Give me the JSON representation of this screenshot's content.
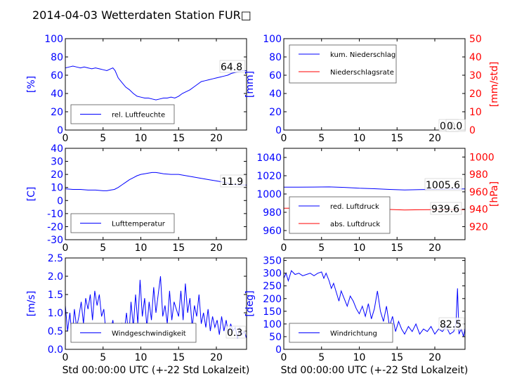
{
  "title": "2014-04-03 Wetterdaten Station FUR□",
  "colors": {
    "blue": "#0000ff",
    "red": "#ff0000",
    "axis": "#000000"
  },
  "chart_data": [
    {
      "type": "line",
      "name": "humidity",
      "ylabel": "[%]",
      "xlim": [
        0,
        24
      ],
      "ylim": [
        0,
        100
      ],
      "yticks": [
        0,
        20,
        40,
        60,
        80,
        100
      ],
      "xticks": [
        0,
        5,
        10,
        15,
        20
      ],
      "legend": {
        "position": "lower-left",
        "entries": [
          {
            "label": "rel. Luftfeuchte",
            "color": "#0000ff"
          }
        ]
      },
      "annotations": [
        {
          "text": "64.8"
        }
      ],
      "series": [
        {
          "name": "rel. Luftfeuchte",
          "color": "#0000ff",
          "axis": "left",
          "x": [
            0,
            0.5,
            1,
            1.5,
            2,
            2.5,
            3,
            3.5,
            4,
            4.5,
            5,
            5.5,
            6,
            6.3,
            6.6,
            7,
            7.5,
            8,
            8.5,
            9,
            9.5,
            10,
            10.5,
            11,
            11.5,
            12,
            12.5,
            13,
            13.5,
            14,
            14.5,
            15,
            15.5,
            16,
            16.5,
            17,
            17.5,
            18,
            18.5,
            19,
            19.5,
            20,
            20.5,
            21,
            21.5,
            22,
            22.5,
            23,
            23.5,
            24
          ],
          "y": [
            68,
            69,
            70,
            69,
            68,
            69,
            68,
            67,
            68,
            67,
            66,
            65,
            67,
            68,
            65,
            57,
            52,
            47,
            44,
            40,
            37,
            36,
            35,
            35,
            34,
            33,
            34,
            35,
            35,
            36,
            35,
            37,
            40,
            42,
            44,
            47,
            50,
            53,
            54,
            55,
            56,
            57,
            58,
            59,
            60,
            62,
            63,
            64,
            65,
            65
          ]
        }
      ]
    },
    {
      "type": "line",
      "name": "precipitation",
      "ylabel": "[mm]",
      "y2label": "[mm/std]",
      "xlim": [
        0,
        24
      ],
      "ylim": [
        0,
        100
      ],
      "y2lim": [
        0,
        50
      ],
      "yticks": [
        0,
        20,
        40,
        60,
        80,
        100
      ],
      "y2ticks": [
        0,
        10,
        20,
        30,
        40,
        50
      ],
      "xticks": [
        0,
        5,
        10,
        15,
        20
      ],
      "legend": {
        "position": "upper-left",
        "entries": [
          {
            "label": "kum. Niederschlag",
            "color": "#0000ff"
          },
          {
            "label": "Niederschlagsrate",
            "color": "#ff0000"
          }
        ]
      },
      "annotations": [
        {
          "text": "0.0"
        },
        {
          "text": "0.0"
        }
      ],
      "series": [
        {
          "name": "kum. Niederschlag",
          "color": "#0000ff",
          "axis": "left",
          "x": [
            0,
            24
          ],
          "y": [
            0,
            0
          ]
        },
        {
          "name": "Niederschlagsrate",
          "color": "#ff0000",
          "axis": "right",
          "x": [
            0,
            24
          ],
          "y": [
            0,
            0
          ]
        }
      ]
    },
    {
      "type": "line",
      "name": "temperature",
      "ylabel": "[C]",
      "xlim": [
        0,
        24
      ],
      "ylim": [
        -30,
        40
      ],
      "yticks": [
        -30,
        -20,
        -10,
        0,
        10,
        20,
        30,
        40
      ],
      "xticks": [
        0,
        5,
        10,
        15,
        20
      ],
      "legend": {
        "position": "lower-left",
        "entries": [
          {
            "label": "Lufttemperatur",
            "color": "#0000ff"
          }
        ]
      },
      "annotations": [
        {
          "text": "11.9"
        }
      ],
      "series": [
        {
          "name": "Lufttemperatur",
          "color": "#0000ff",
          "axis": "left",
          "x": [
            0,
            1,
            2,
            3,
            4,
            5,
            5.5,
            6,
            6.5,
            7,
            7.5,
            8,
            8.5,
            9,
            9.5,
            10,
            10.5,
            11,
            11.5,
            12,
            12.5,
            13,
            14,
            15,
            16,
            17,
            18,
            19,
            20,
            21,
            22,
            23,
            24
          ],
          "y": [
            9,
            8.5,
            8.5,
            8,
            8,
            7.5,
            7.5,
            8,
            8.5,
            10,
            12,
            14,
            16,
            17.5,
            19,
            20,
            20.5,
            21,
            21.5,
            21.5,
            21,
            20.5,
            20,
            20,
            19,
            18,
            17,
            16,
            15,
            14,
            12.5,
            12,
            11.9
          ]
        }
      ]
    },
    {
      "type": "line",
      "name": "pressure",
      "y2label": "[hPa]",
      "xlim": [
        0,
        24
      ],
      "ylim": [
        950,
        1050
      ],
      "y2lim": [
        905,
        1010
      ],
      "yticks": [
        960,
        980,
        1000,
        1020,
        1040
      ],
      "y2ticks": [
        920,
        940,
        960,
        980,
        1000
      ],
      "xticks": [
        0,
        5,
        10,
        15,
        20
      ],
      "legend": {
        "position": "lower-left",
        "entries": [
          {
            "label": "red. Luftdruck",
            "color": "#0000ff"
          },
          {
            "label": "abs. Luftdruck",
            "color": "#ff0000"
          }
        ]
      },
      "annotations": [
        {
          "text": "1005.6"
        },
        {
          "text": "939.6"
        }
      ],
      "series": [
        {
          "name": "red. Luftdruck",
          "color": "#0000ff",
          "axis": "left",
          "x": [
            0,
            2,
            4,
            6,
            8,
            10,
            12,
            14,
            16,
            18,
            20,
            22,
            24
          ],
          "y": [
            1007.5,
            1007.5,
            1007.6,
            1007.8,
            1007.2,
            1006.3,
            1005.8,
            1005.0,
            1004.4,
            1004.8,
            1005.0,
            1005.4,
            1005.6
          ]
        },
        {
          "name": "abs. Luftdruck",
          "color": "#ff0000",
          "axis": "right",
          "x": [
            0,
            2,
            4,
            6,
            8,
            10,
            12,
            14,
            16,
            18,
            20,
            22,
            24
          ],
          "y": [
            941.2,
            941.3,
            941.4,
            941.5,
            941.2,
            940.7,
            940.3,
            939.7,
            939.2,
            939.4,
            939.5,
            939.6,
            939.6
          ]
        }
      ]
    },
    {
      "type": "line",
      "name": "windspeed",
      "ylabel": "[m/s]",
      "xlabel": "Std 00:00:00 UTC (+-22 Std Lokalzeit)",
      "xlim": [
        0,
        24
      ],
      "ylim": [
        0,
        2.5
      ],
      "yticks": [
        0.0,
        0.5,
        1.0,
        1.5,
        2.0,
        2.5
      ],
      "xticks": [
        0,
        5,
        10,
        15,
        20
      ],
      "legend": {
        "position": "lower-center",
        "entries": [
          {
            "label": "Windgeschwindigkeit",
            "color": "#0000ff"
          }
        ]
      },
      "annotations": [
        {
          "text": "0.3"
        }
      ],
      "series": [
        {
          "name": "Windgeschwindigkeit",
          "color": "#0000ff",
          "axis": "left",
          "x": [
            0,
            0.3,
            0.6,
            0.9,
            1.2,
            1.5,
            1.8,
            2.1,
            2.4,
            2.7,
            3,
            3.3,
            3.6,
            3.9,
            4.2,
            4.5,
            4.8,
            5.1,
            5.4,
            5.7,
            6,
            6.3,
            6.6,
            6.9,
            7.2,
            7.5,
            7.8,
            8.1,
            8.4,
            8.7,
            9,
            9.3,
            9.6,
            9.9,
            10.2,
            10.5,
            10.8,
            11.1,
            11.4,
            11.7,
            12,
            12.3,
            12.6,
            12.9,
            13.2,
            13.5,
            13.8,
            14.1,
            14.4,
            14.7,
            15,
            15.3,
            15.6,
            15.9,
            16.2,
            16.5,
            16.8,
            17.1,
            17.4,
            17.7,
            18,
            18.3,
            18.6,
            18.9,
            19.2,
            19.5,
            19.8,
            20.1,
            20.4,
            20.7,
            21,
            21.3,
            21.6,
            21.9,
            22.2,
            22.5,
            22.8,
            23.1,
            23.4,
            23.7,
            24
          ],
          "y": [
            1.2,
            0.5,
            1.0,
            0.3,
            1.1,
            0.6,
            0.9,
            1.3,
            0.7,
            1.4,
            1.1,
            1.5,
            0.8,
            1.6,
            1.2,
            1.5,
            0.9,
            1.1,
            0.4,
            0.7,
            0.5,
            0.8,
            0.3,
            0.6,
            0.4,
            0.7,
            0.5,
            1.0,
            0.3,
            1.3,
            0.6,
            1.5,
            0.7,
            1.9,
            0.9,
            1.4,
            0.6,
            1.3,
            0.8,
            1.7,
            1.0,
            1.5,
            2.0,
            0.9,
            1.2,
            0.7,
            1.6,
            0.8,
            1.3,
            1.1,
            0.9,
            1.6,
            0.8,
            1.8,
            1.0,
            1.4,
            0.6,
            1.2,
            0.9,
            1.5,
            0.7,
            1.0,
            0.6,
            1.1,
            0.5,
            0.9,
            0.6,
            0.8,
            0.4,
            0.9,
            0.5,
            0.8,
            0.4,
            0.7,
            0.5,
            0.6,
            0.3,
            0.6,
            0.4,
            0.5,
            0.3
          ]
        }
      ]
    },
    {
      "type": "line",
      "name": "winddirection",
      "ylabel": "[deg]",
      "xlabel": "Std 00:00:00 UTC (+-22 Std Lokalzeit)",
      "xlim": [
        0,
        24
      ],
      "ylim": [
        0,
        360
      ],
      "yticks": [
        0,
        50,
        100,
        150,
        200,
        250,
        300,
        350
      ],
      "xticks": [
        0,
        5,
        10,
        15,
        20
      ],
      "legend": {
        "position": "lower-left",
        "entries": [
          {
            "label": "Windrichtung",
            "color": "#0000ff"
          }
        ]
      },
      "annotations": [
        {
          "text": "82.5"
        }
      ],
      "series": [
        {
          "name": "Windrichtung",
          "color": "#0000ff",
          "axis": "left",
          "x": [
            0,
            0.3,
            0.6,
            1,
            1.5,
            2,
            2.5,
            3,
            3.5,
            4,
            4.5,
            5,
            5.3,
            5.6,
            6,
            6.3,
            6.6,
            7,
            7.3,
            7.6,
            8,
            8.4,
            8.8,
            9.2,
            9.6,
            10,
            10.4,
            10.8,
            11.2,
            11.6,
            12,
            12.4,
            12.8,
            13.2,
            13.6,
            14,
            14.4,
            14.8,
            15.2,
            15.6,
            16,
            16.5,
            17,
            17.5,
            18,
            18.5,
            19,
            19.5,
            20,
            20.5,
            21,
            21.5,
            22,
            22.5,
            22.8,
            23,
            23.2,
            23.5,
            23.8,
            24
          ],
          "y": [
            280,
            300,
            270,
            310,
            295,
            300,
            290,
            295,
            300,
            290,
            300,
            305,
            280,
            300,
            270,
            240,
            260,
            220,
            190,
            230,
            200,
            170,
            210,
            190,
            160,
            140,
            170,
            130,
            180,
            120,
            160,
            230,
            150,
            110,
            170,
            90,
            130,
            70,
            110,
            80,
            60,
            90,
            70,
            100,
            60,
            80,
            70,
            90,
            60,
            80,
            70,
            90,
            60,
            70,
            100,
            240,
            60,
            80,
            50,
            82.5
          ]
        }
      ]
    }
  ]
}
